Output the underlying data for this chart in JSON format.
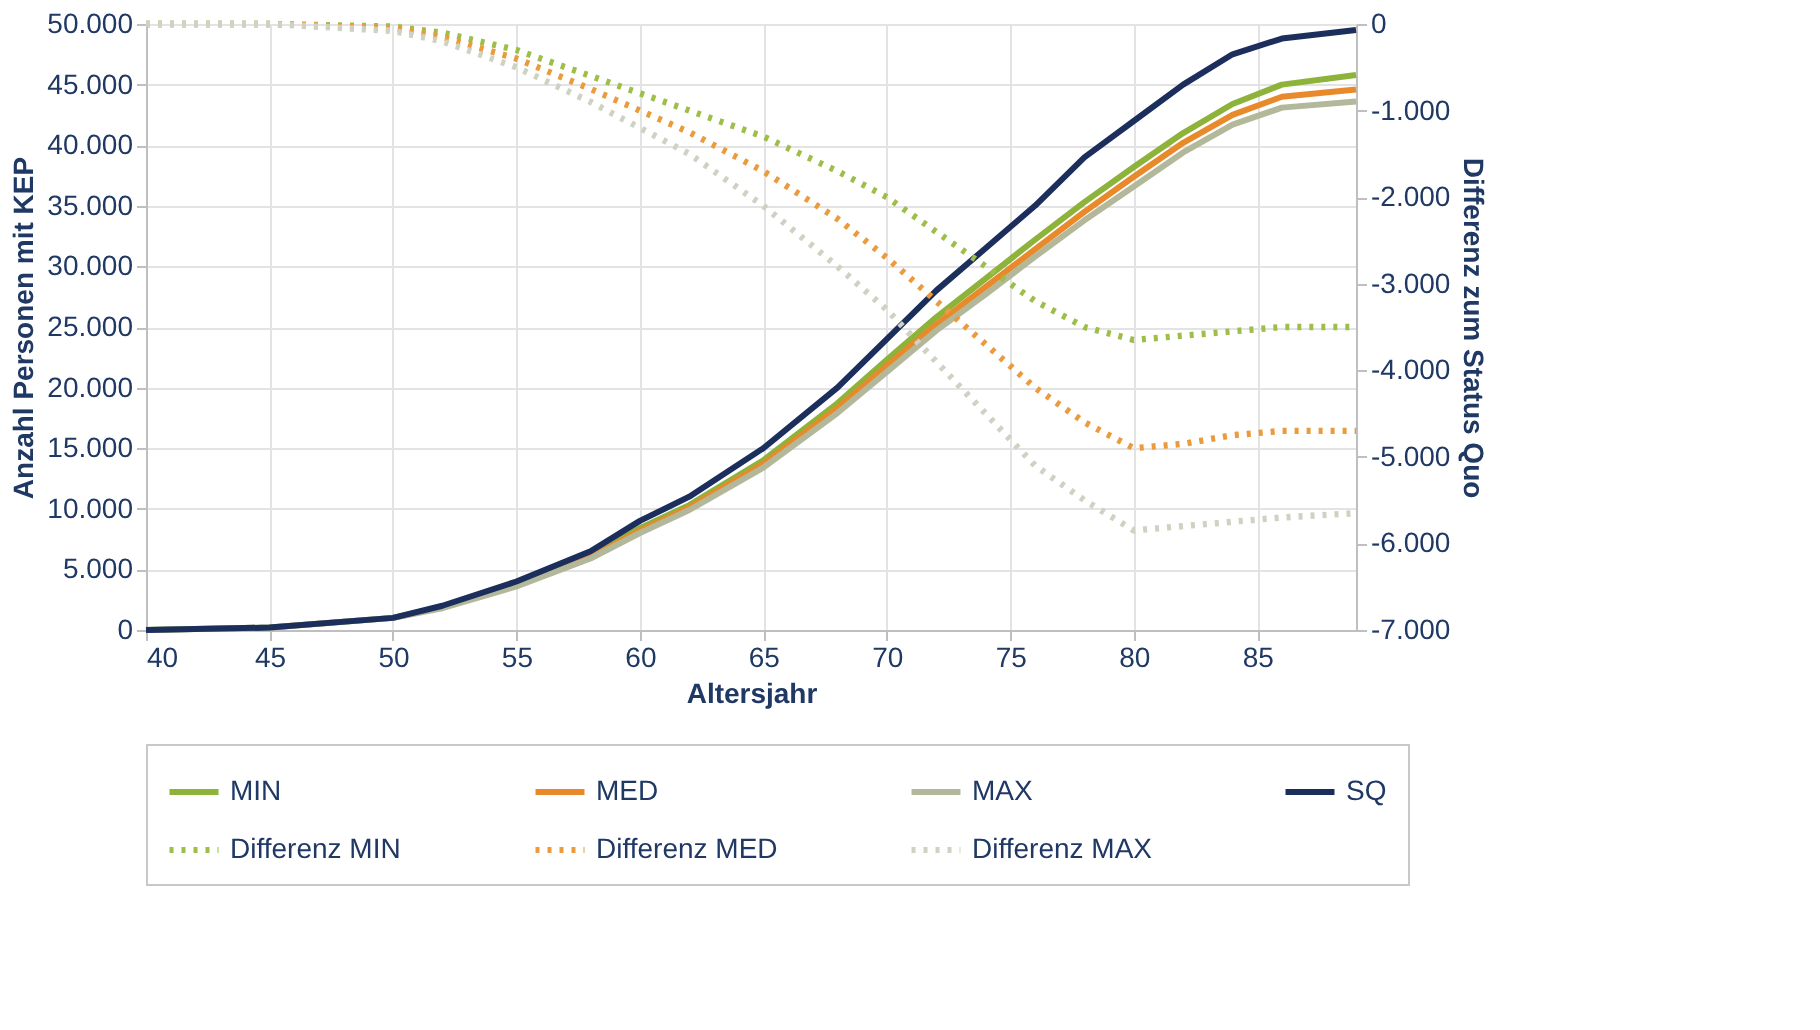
{
  "chart_data": {
    "type": "line",
    "xlabel": "Altersjahr",
    "ylabel": "Anzahl Personen mit KEP",
    "y2label": "Differenz zum Status Quo",
    "x": [
      40,
      45,
      50,
      52,
      55,
      58,
      60,
      62,
      65,
      68,
      70,
      72,
      74,
      76,
      78,
      80,
      82,
      84,
      86,
      89
    ],
    "series": [
      {
        "name": "MIN",
        "color": "#8db33a",
        "values": [
          0,
          200,
          1000,
          1900,
          3800,
          6100,
          8400,
          10300,
          14000,
          18700,
          22300,
          25800,
          29000,
          32200,
          35300,
          38200,
          41000,
          43400,
          45000,
          45800
        ]
      },
      {
        "name": "MED",
        "color": "#e88a2c",
        "values": [
          null,
          null,
          null,
          null,
          3700,
          6000,
          8200,
          10100,
          13700,
          18300,
          21800,
          25200,
          28300,
          31400,
          34500,
          37400,
          40200,
          42500,
          44000,
          44600
        ]
      },
      {
        "name": "MAX",
        "color": "#b3b89a",
        "values": [
          0,
          200,
          1000,
          1800,
          3600,
          5900,
          8000,
          9900,
          13400,
          17900,
          21300,
          24700,
          27700,
          30800,
          33800,
          36600,
          39400,
          41700,
          43100,
          43600
        ]
      },
      {
        "name": "SQ",
        "color": "#1c2e5c",
        "values": [
          0,
          200,
          1000,
          2000,
          4000,
          6500,
          9000,
          11000,
          15000,
          20000,
          24000,
          28000,
          31500,
          35000,
          39000,
          42000,
          45000,
          47500,
          48800,
          49500
        ]
      },
      {
        "name": "Differenz MIN",
        "color": "#9dbf4a",
        "axis": "y2",
        "line_style": "dotted",
        "values": [
          0,
          0,
          -30,
          -100,
          -300,
          -600,
          -800,
          -1000,
          -1300,
          -1700,
          -2000,
          -2400,
          -2800,
          -3200,
          -3500,
          -3650,
          -3600,
          -3550,
          -3500,
          -3500
        ]
      },
      {
        "name": "Differenz MED",
        "color": "#eb9a3c",
        "axis": "y2",
        "line_style": "dotted",
        "values": [
          0,
          0,
          -50,
          -150,
          -400,
          -750,
          -1000,
          -1250,
          -1700,
          -2250,
          -2700,
          -3200,
          -3700,
          -4200,
          -4600,
          -4900,
          -4850,
          -4750,
          -4700,
          -4700
        ]
      },
      {
        "name": "Differenz MAX",
        "color": "#ced2c2",
        "axis": "y2",
        "line_style": "dotted",
        "values": [
          0,
          0,
          -80,
          -200,
          -500,
          -900,
          -1200,
          -1500,
          -2100,
          -2800,
          -3300,
          -3900,
          -4500,
          -5100,
          -5500,
          -5850,
          -5800,
          -5750,
          -5700,
          -5650
        ]
      }
    ],
    "xlim": [
      40,
      89
    ],
    "xticks": [
      40,
      45,
      50,
      55,
      60,
      65,
      70,
      75,
      80,
      85
    ],
    "ylim": [
      0,
      50000
    ],
    "yticks": [
      {
        "value": 0,
        "label": "0"
      },
      {
        "value": 5000,
        "label": "5.000"
      },
      {
        "value": 10000,
        "label": "10.000"
      },
      {
        "value": 15000,
        "label": "15.000"
      },
      {
        "value": 20000,
        "label": "20.000"
      },
      {
        "value": 25000,
        "label": "25.000"
      },
      {
        "value": 30000,
        "label": "30.000"
      },
      {
        "value": 35000,
        "label": "35.000"
      },
      {
        "value": 40000,
        "label": "40.000"
      },
      {
        "value": 45000,
        "label": "45.000"
      },
      {
        "value": 50000,
        "label": "50.000"
      }
    ],
    "y2lim": [
      -7000,
      0
    ],
    "y2ticks": [
      {
        "value": 0,
        "label": "0"
      },
      {
        "value": -1000,
        "label": "-1.000"
      },
      {
        "value": -2000,
        "label": "-2.000"
      },
      {
        "value": -3000,
        "label": "-3.000"
      },
      {
        "value": -4000,
        "label": "-4.000"
      },
      {
        "value": -5000,
        "label": "-5.000"
      },
      {
        "value": -6000,
        "label": "-6.000"
      },
      {
        "value": -7000,
        "label": "-7.000"
      }
    ],
    "grid": true,
    "legend": "bottom",
    "line_style": "solid",
    "marker": "none"
  }
}
